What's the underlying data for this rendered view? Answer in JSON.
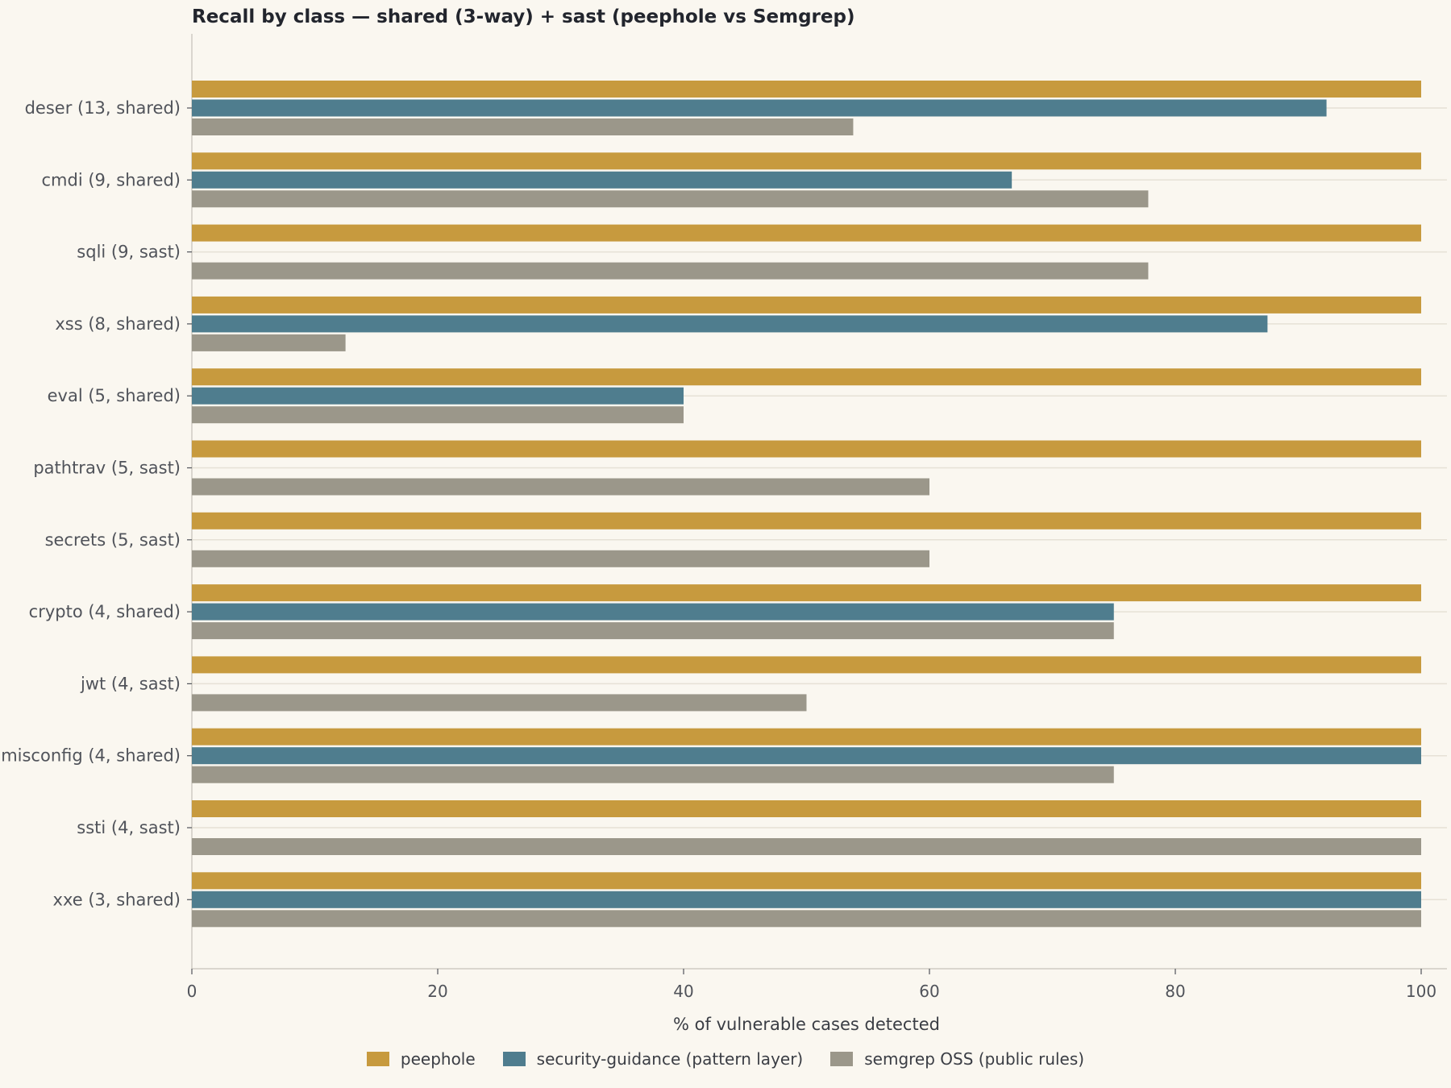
{
  "chart_data": {
    "type": "bar",
    "orientation": "horizontal",
    "title": "Recall by class — shared (3-way) + sast (peephole vs Semgrep)",
    "xlabel": "% of vulnerable cases detected",
    "ylabel": "",
    "xlim": [
      0,
      100
    ],
    "xticks": [
      0,
      20,
      40,
      60,
      80,
      100
    ],
    "grid": "horizontal lines at categories",
    "legend_position": "bottom-center",
    "categories": [
      "deser (13, shared)",
      "cmdi (9, shared)",
      "sqli (9, sast)",
      "xss (8, shared)",
      "eval (5, shared)",
      "pathtrav (5, sast)",
      "secrets (5, sast)",
      "crypto (4, shared)",
      "jwt (4, sast)",
      "misconfig (4, shared)",
      "ssti (4, sast)",
      "xxe (3, shared)"
    ],
    "series": [
      {
        "name": "peephole",
        "color": "#c79a3e",
        "values": [
          100,
          100,
          100,
          100,
          100,
          100,
          100,
          100,
          100,
          100,
          100,
          100
        ]
      },
      {
        "name": "security-guidance (pattern layer)",
        "color": "#4f7d8e",
        "values": [
          92.3,
          66.7,
          null,
          87.5,
          40,
          null,
          null,
          75,
          null,
          100,
          null,
          100
        ]
      },
      {
        "name": "semgrep OSS (public rules)",
        "color": "#9b978a",
        "values": [
          53.8,
          77.8,
          77.8,
          12.5,
          40,
          60,
          60,
          75,
          50,
          75,
          100,
          100
        ]
      }
    ]
  }
}
